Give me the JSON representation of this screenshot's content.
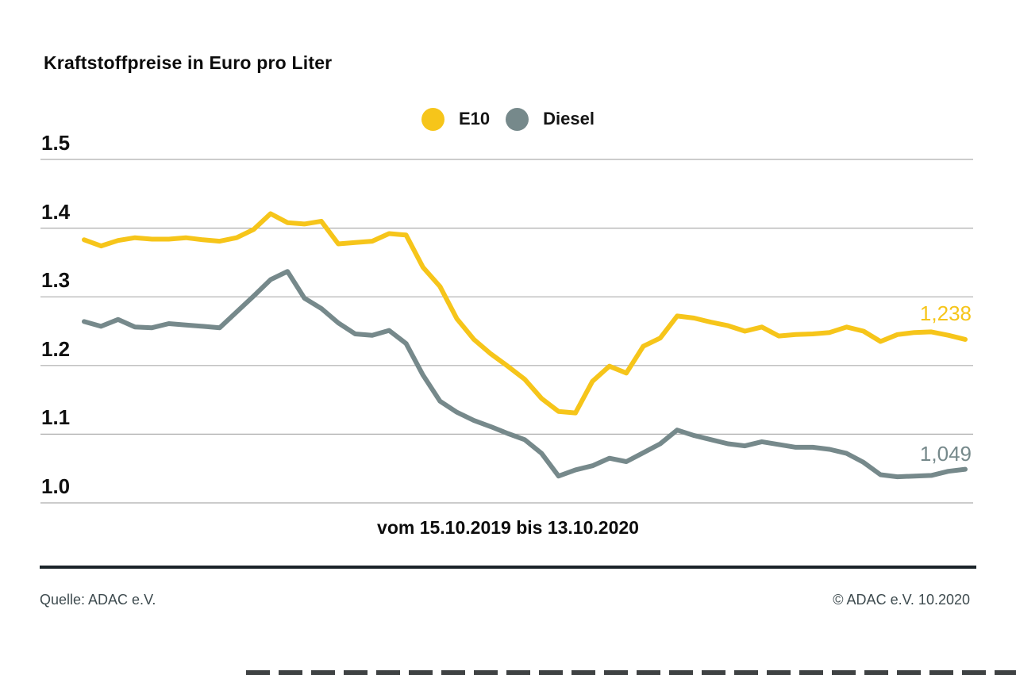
{
  "header": {
    "title": "Kraftstoffpreise in Euro pro Liter"
  },
  "legend": [
    {
      "label": "E10",
      "color": "#F6C51A"
    },
    {
      "label": "Diesel",
      "color": "#76898B"
    }
  ],
  "chart_data": {
    "type": "line",
    "title": "Kraftstoffpreise in Euro pro Liter",
    "ylabel": "Euro pro Liter",
    "xlabel": "vom 15.10.2019 bis 13.10.2020",
    "x_start": "15.10.2019",
    "x_end": "13.10.2020",
    "x_unit": "weeks",
    "ylim": [
      1.0,
      1.5
    ],
    "yticks": [
      "1.5",
      "1.4",
      "1.3",
      "1.2",
      "1.1",
      "1.0"
    ],
    "grid": "horizontal",
    "legend_position": "top-center",
    "colors": {
      "grid": "#AEAEAE",
      "e10": "#F6C51A",
      "diesel": "#76898B"
    },
    "series": [
      {
        "name": "E10",
        "color": "#F6C51A",
        "end_label": "1,238",
        "end_value": 1.238,
        "values": [
          1.383,
          1.374,
          1.382,
          1.386,
          1.384,
          1.384,
          1.386,
          1.383,
          1.381,
          1.386,
          1.398,
          1.421,
          1.408,
          1.406,
          1.41,
          1.377,
          1.379,
          1.381,
          1.392,
          1.39,
          1.343,
          1.315,
          1.268,
          1.238,
          1.217,
          1.199,
          1.18,
          1.152,
          1.133,
          1.131,
          1.177,
          1.199,
          1.189,
          1.228,
          1.24,
          1.272,
          1.269,
          1.263,
          1.258,
          1.25,
          1.256,
          1.243,
          1.245,
          1.246,
          1.248,
          1.256,
          1.25,
          1.235,
          1.245,
          1.248,
          1.249,
          1.244,
          1.238
        ]
      },
      {
        "name": "Diesel",
        "color": "#76898B",
        "end_label": "1,049",
        "end_value": 1.049,
        "values": [
          1.264,
          1.257,
          1.267,
          1.256,
          1.255,
          1.261,
          1.259,
          1.257,
          1.255,
          1.278,
          1.301,
          1.325,
          1.337,
          1.298,
          1.283,
          1.262,
          1.246,
          1.244,
          1.251,
          1.232,
          1.186,
          1.148,
          1.132,
          1.12,
          1.111,
          1.101,
          1.092,
          1.072,
          1.039,
          1.048,
          1.054,
          1.065,
          1.06,
          1.073,
          1.086,
          1.106,
          1.098,
          1.092,
          1.086,
          1.083,
          1.089,
          1.085,
          1.081,
          1.081,
          1.078,
          1.072,
          1.059,
          1.041,
          1.038,
          1.039,
          1.04,
          1.046,
          1.049
        ]
      }
    ]
  },
  "footer": {
    "source": "Quelle: ADAC e.V.",
    "copyright": "© ADAC e.V. 10.2020"
  }
}
